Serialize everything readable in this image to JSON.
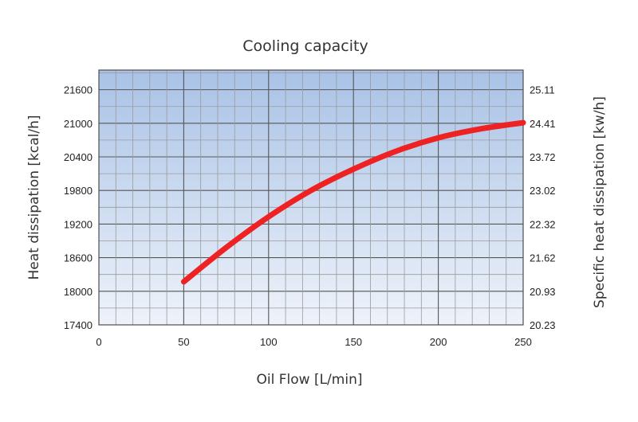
{
  "chart_data": {
    "type": "line",
    "title": "Cooling capacity",
    "xlabel": "Oil Flow [L/min]",
    "ylabel": "Heat dissipation [kcal/h]",
    "y2label": "Specific heat dissipation [kw/h]",
    "xlim": [
      0,
      250
    ],
    "ylim": [
      17400,
      21950
    ],
    "x_ticks": [
      "0",
      "50",
      "100",
      "150",
      "200",
      "250"
    ],
    "x_tick_values": [
      0,
      50,
      100,
      150,
      200,
      250
    ],
    "y_ticks": [
      "17400",
      "18000",
      "18600",
      "19200",
      "19800",
      "20400",
      "21000",
      "21600"
    ],
    "y_tick_values": [
      17400,
      18000,
      18600,
      19200,
      19800,
      20400,
      21000,
      21600
    ],
    "y2_ticks": [
      "20.23",
      "20.93",
      "21.62",
      "22.32",
      "23.02",
      "23.72",
      "24.41",
      "25.11"
    ],
    "grid": true,
    "series": [
      {
        "color": "#ee2222",
        "x": [
          50,
          75,
          100,
          125,
          150,
          175,
          200,
          225,
          250
        ],
        "y": [
          18170,
          18780,
          19330,
          19800,
          20180,
          20500,
          20740,
          20900,
          21010
        ]
      }
    ]
  }
}
